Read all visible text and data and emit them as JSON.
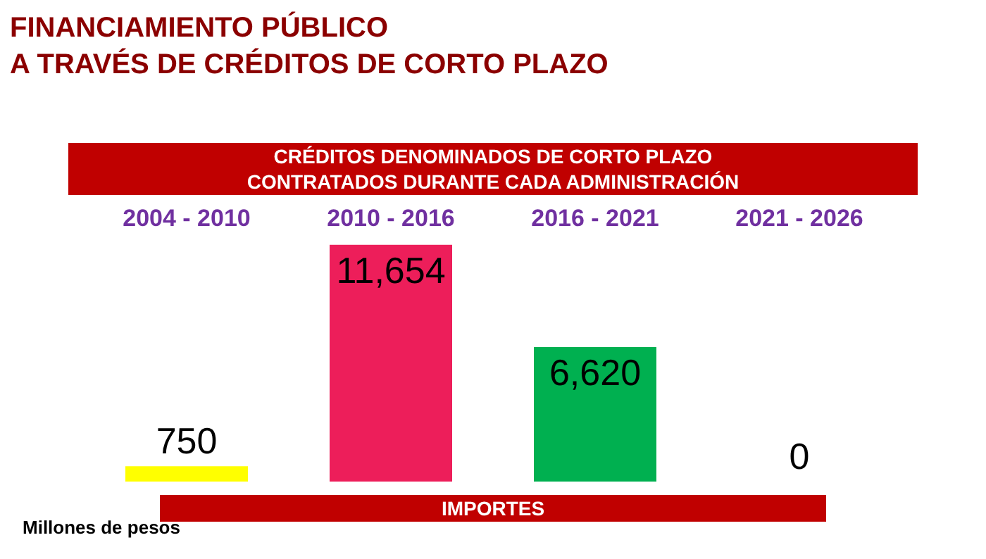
{
  "chart_data": {
    "type": "bar",
    "title": "FINANCIAMIENTO PÚBLICO\nA TRAVÉS DE CRÉDITOS DE CORTO PLAZO",
    "subtitle": "CRÉDITOS DENOMINADOS DE CORTO PLAZO\nCONTRATADOS DURANTE CADA ADMINISTRACIÓN",
    "xlabel": "IMPORTES",
    "annotations": [
      "Millones de pesos"
    ],
    "categories": [
      "2004 - 2010",
      "2010 - 2016",
      "2016 - 2021",
      "2021 - 2026"
    ],
    "values": [
      750,
      11654,
      6620,
      0
    ],
    "colors": [
      "#ffff00",
      "#ed1e5a",
      "#00b050",
      "#e6e6ee"
    ],
    "value_labels": [
      "750",
      "11,654",
      "6,620",
      "0"
    ],
    "tick_labels": "x"
  }
}
